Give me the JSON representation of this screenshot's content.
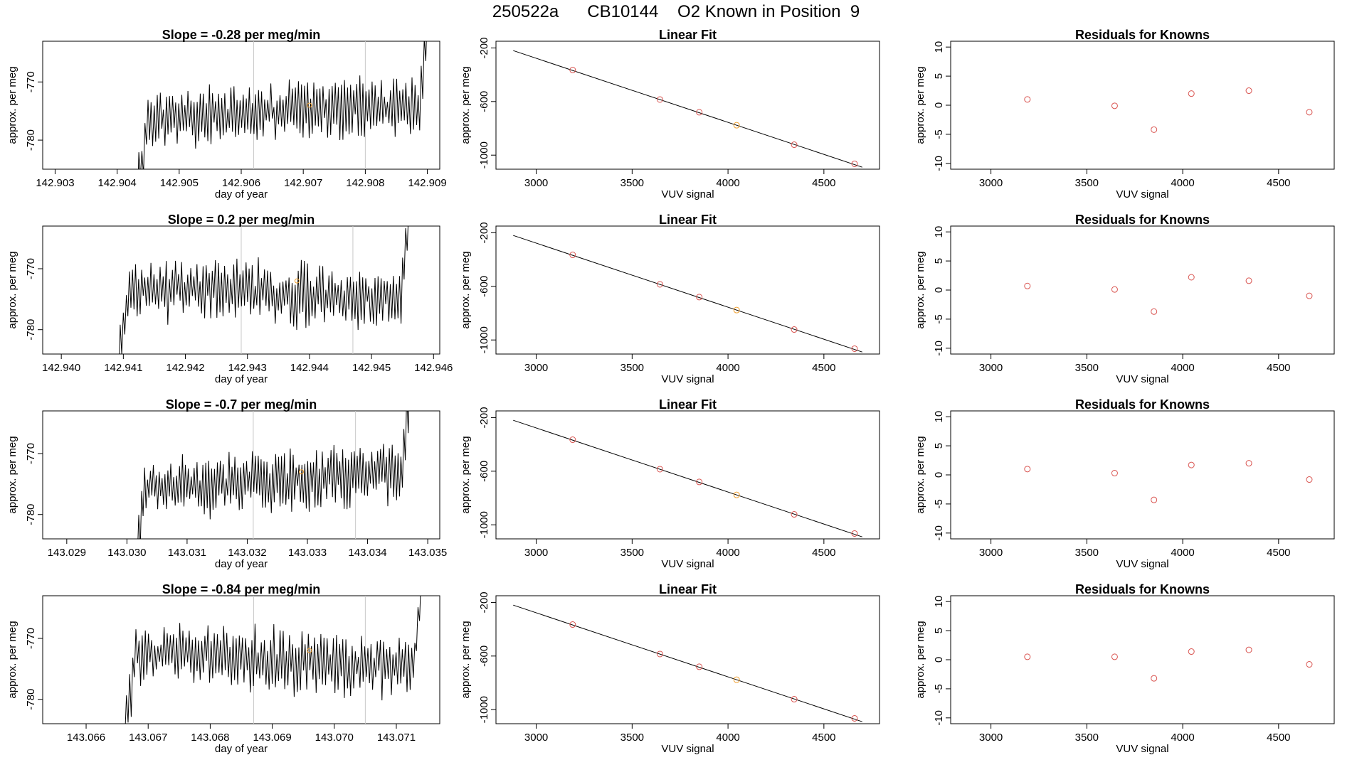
{
  "page": {
    "title": "250522a      CB10144    O2 Known in Position  9"
  },
  "chart_data": [
    {
      "type": "line",
      "title": "Slope =  -0.28  per meg/min",
      "xlabel": "day of year",
      "ylabel": "approx. per meg",
      "xlim": [
        142.9028,
        142.9092
      ],
      "ylim": [
        -785,
        -763
      ],
      "xticks": [
        "142.903",
        "142.904",
        "142.905",
        "142.906",
        "142.907",
        "142.908",
        "142.909"
      ],
      "xtick_values": [
        142.903,
        142.904,
        142.905,
        142.906,
        142.907,
        142.908,
        142.909
      ],
      "yticks": [
        "-770",
        "-780"
      ],
      "ytick_values": [
        -770,
        -780
      ],
      "vlines": [
        142.9062,
        142.908
      ],
      "x_start": 142.9043,
      "x_end": 142.909,
      "trace_seed": 11,
      "trend": [
        -776,
        -774
      ],
      "highlight": {
        "x": 142.9071,
        "y": -774
      }
    },
    {
      "type": "line",
      "title": "Linear Fit",
      "xlabel": "VUV signal",
      "ylabel": "approx. per meg",
      "xlim": [
        2790,
        4790
      ],
      "ylim": [
        -1105,
        -150
      ],
      "xticks": [
        "3000",
        "3500",
        "4000",
        "4500"
      ],
      "xtick_values": [
        3000,
        3500,
        4000,
        4500
      ],
      "yticks": [
        "-200",
        "-600",
        "-1000"
      ],
      "ytick_values": [
        -200,
        -600,
        -1000
      ],
      "fit_line": {
        "x": [
          2880,
          4700
        ],
        "y": [
          -220,
          -1090
        ]
      },
      "points": {
        "x": [
          3190,
          3645,
          3850,
          4045,
          4345,
          4660
        ],
        "y": [
          -365,
          -585,
          -680,
          -777,
          -922,
          -1065
        ]
      },
      "highlight_index": 3
    },
    {
      "type": "scatter",
      "title": "Residuals for Knowns",
      "xlabel": "VUV signal",
      "ylabel": "approx. per meg",
      "xlim": [
        2790,
        4790
      ],
      "ylim": [
        -11,
        11
      ],
      "xticks": [
        "3000",
        "3500",
        "4000",
        "4500"
      ],
      "xtick_values": [
        3000,
        3500,
        4000,
        4500
      ],
      "yticks": [
        "10",
        "5",
        "0",
        "-5",
        "-10"
      ],
      "ytick_values": [
        10,
        5,
        0,
        -5,
        -10
      ],
      "x": [
        3190,
        3645,
        3850,
        4045,
        4345,
        4660
      ],
      "y": [
        1.0,
        -0.1,
        -4.2,
        2.0,
        2.5,
        -1.2
      ]
    },
    {
      "type": "line",
      "title": "Slope =  0.2  per meg/min",
      "xlabel": "day of year",
      "ylabel": "approx. per meg",
      "xlim": [
        142.9397,
        142.9461
      ],
      "ylim": [
        -784,
        -763
      ],
      "xticks": [
        "142.940",
        "142.941",
        "142.942",
        "142.943",
        "142.944",
        "142.945",
        "142.946"
      ],
      "xtick_values": [
        142.94,
        142.941,
        142.942,
        142.943,
        142.944,
        142.945,
        142.946
      ],
      "yticks": [
        "-770",
        "-780"
      ],
      "ytick_values": [
        -770,
        -780
      ],
      "vlines": [
        142.9429,
        142.9447
      ],
      "x_start": 142.9409,
      "x_end": 142.9456,
      "trace_seed": 23,
      "trend": [
        -773,
        -775
      ],
      "highlight": {
        "x": 142.9438,
        "y": -772
      }
    },
    {
      "type": "line",
      "title": "Linear Fit",
      "xlabel": "VUV signal",
      "ylabel": "approx. per meg",
      "xlim": [
        2790,
        4790
      ],
      "ylim": [
        -1105,
        -150
      ],
      "xticks": [
        "3000",
        "3500",
        "4000",
        "4500"
      ],
      "xtick_values": [
        3000,
        3500,
        4000,
        4500
      ],
      "yticks": [
        "-200",
        "-600",
        "-1000"
      ],
      "ytick_values": [
        -200,
        -600,
        -1000
      ],
      "fit_line": {
        "x": [
          2880,
          4700
        ],
        "y": [
          -220,
          -1090
        ]
      },
      "points": {
        "x": [
          3190,
          3645,
          3850,
          4045,
          4345,
          4660
        ],
        "y": [
          -365,
          -585,
          -680,
          -777,
          -922,
          -1065
        ]
      },
      "highlight_index": 3
    },
    {
      "type": "scatter",
      "title": "Residuals for Knowns",
      "xlabel": "VUV signal",
      "ylabel": "approx. per meg",
      "xlim": [
        2790,
        4790
      ],
      "ylim": [
        -11,
        11
      ],
      "xticks": [
        "3000",
        "3500",
        "4000",
        "4500"
      ],
      "xtick_values": [
        3000,
        3500,
        4000,
        4500
      ],
      "yticks": [
        "10",
        "5",
        "0",
        "-5",
        "-10"
      ],
      "ytick_values": [
        10,
        5,
        0,
        -5,
        -10
      ],
      "x": [
        3190,
        3645,
        3850,
        4045,
        4345,
        4660
      ],
      "y": [
        0.7,
        0.1,
        -3.7,
        2.2,
        1.6,
        -1.0
      ]
    },
    {
      "type": "line",
      "title": "Slope =  -0.7  per meg/min",
      "xlabel": "day of year",
      "ylabel": "approx. per meg",
      "xlim": [
        143.0286,
        143.0352
      ],
      "ylim": [
        -784,
        -763
      ],
      "xticks": [
        "143.029",
        "143.030",
        "143.031",
        "143.032",
        "143.033",
        "143.034",
        "143.035"
      ],
      "xtick_values": [
        143.029,
        143.03,
        143.031,
        143.032,
        143.033,
        143.034,
        143.035
      ],
      "yticks": [
        "-770",
        "-780"
      ],
      "ytick_values": [
        -770,
        -780
      ],
      "vlines": [
        143.0321,
        143.0338
      ],
      "x_start": 143.0301,
      "x_end": 143.0347,
      "trace_seed": 37,
      "trend": [
        -776,
        -773
      ],
      "highlight": {
        "x": 143.0329,
        "y": -773
      }
    },
    {
      "type": "line",
      "title": "Linear Fit",
      "xlabel": "VUV signal",
      "ylabel": "approx. per meg",
      "xlim": [
        2790,
        4790
      ],
      "ylim": [
        -1105,
        -150
      ],
      "xticks": [
        "3000",
        "3500",
        "4000",
        "4500"
      ],
      "xtick_values": [
        3000,
        3500,
        4000,
        4500
      ],
      "yticks": [
        "-200",
        "-600",
        "-1000"
      ],
      "ytick_values": [
        -200,
        -600,
        -1000
      ],
      "fit_line": {
        "x": [
          2880,
          4700
        ],
        "y": [
          -220,
          -1090
        ]
      },
      "points": {
        "x": [
          3190,
          3645,
          3850,
          4045,
          4345,
          4660
        ],
        "y": [
          -365,
          -585,
          -680,
          -777,
          -922,
          -1065
        ]
      },
      "highlight_index": 3
    },
    {
      "type": "scatter",
      "title": "Residuals for Knowns",
      "xlabel": "VUV signal",
      "ylabel": "approx. per meg",
      "xlim": [
        2790,
        4790
      ],
      "ylim": [
        -11,
        11
      ],
      "xticks": [
        "3000",
        "3500",
        "4000",
        "4500"
      ],
      "xtick_values": [
        3000,
        3500,
        4000,
        4500
      ],
      "yticks": [
        "10",
        "5",
        "0",
        "-5",
        "-10"
      ],
      "ytick_values": [
        10,
        5,
        0,
        -5,
        -10
      ],
      "x": [
        3190,
        3645,
        3850,
        4045,
        4345,
        4660
      ],
      "y": [
        1.0,
        0.3,
        -4.3,
        1.7,
        2.0,
        -0.8
      ]
    },
    {
      "type": "line",
      "title": "Slope =  -0.84  per meg/min",
      "xlabel": "day of year",
      "ylabel": "approx. per meg",
      "xlim": [
        143.0653,
        143.0717
      ],
      "ylim": [
        -784,
        -763
      ],
      "xticks": [
        "143.066",
        "143.067",
        "143.068",
        "143.069",
        "143.070",
        "143.071"
      ],
      "xtick_values": [
        143.066,
        143.067,
        143.068,
        143.069,
        143.07,
        143.071
      ],
      "yticks": [
        "-770",
        "-780"
      ],
      "ytick_values": [
        -770,
        -780
      ],
      "vlines": [
        143.0687,
        143.0705
      ],
      "x_start": 143.0666,
      "x_end": 143.0714,
      "trace_seed": 53,
      "trend": [
        -772,
        -775
      ],
      "highlight": {
        "x": 143.0696,
        "y": -772
      }
    },
    {
      "type": "line",
      "title": "Linear Fit",
      "xlabel": "VUV signal",
      "ylabel": "approx. per meg",
      "xlim": [
        2790,
        4790
      ],
      "ylim": [
        -1105,
        -150
      ],
      "xticks": [
        "3000",
        "3500",
        "4000",
        "4500"
      ],
      "xtick_values": [
        3000,
        3500,
        4000,
        4500
      ],
      "yticks": [
        "-200",
        "-600",
        "-1000"
      ],
      "ytick_values": [
        -200,
        -600,
        -1000
      ],
      "fit_line": {
        "x": [
          2880,
          4700
        ],
        "y": [
          -220,
          -1090
        ]
      },
      "points": {
        "x": [
          3190,
          3645,
          3850,
          4045,
          4345,
          4660
        ],
        "y": [
          -365,
          -585,
          -680,
          -777,
          -922,
          -1065
        ]
      },
      "highlight_index": 3
    },
    {
      "type": "scatter",
      "title": "Residuals for Knowns",
      "xlabel": "VUV signal",
      "ylabel": "approx. per meg",
      "xlim": [
        2790,
        4790
      ],
      "ylim": [
        -11,
        11
      ],
      "xticks": [
        "3000",
        "3500",
        "4000",
        "4500"
      ],
      "xtick_values": [
        3000,
        3500,
        4000,
        4500
      ],
      "yticks": [
        "10",
        "5",
        "0",
        "-5",
        "-10"
      ],
      "ytick_values": [
        10,
        5,
        0,
        -5,
        -10
      ],
      "x": [
        3190,
        3645,
        3850,
        4045,
        4345,
        4660
      ],
      "y": [
        0.5,
        0.5,
        -3.2,
        1.4,
        1.7,
        -0.8
      ]
    }
  ],
  "colors": {
    "trace": "#000000",
    "vline": "#c8c8c8",
    "point": "#d9534f",
    "highlight": "#f0a030",
    "axis": "#000000"
  }
}
